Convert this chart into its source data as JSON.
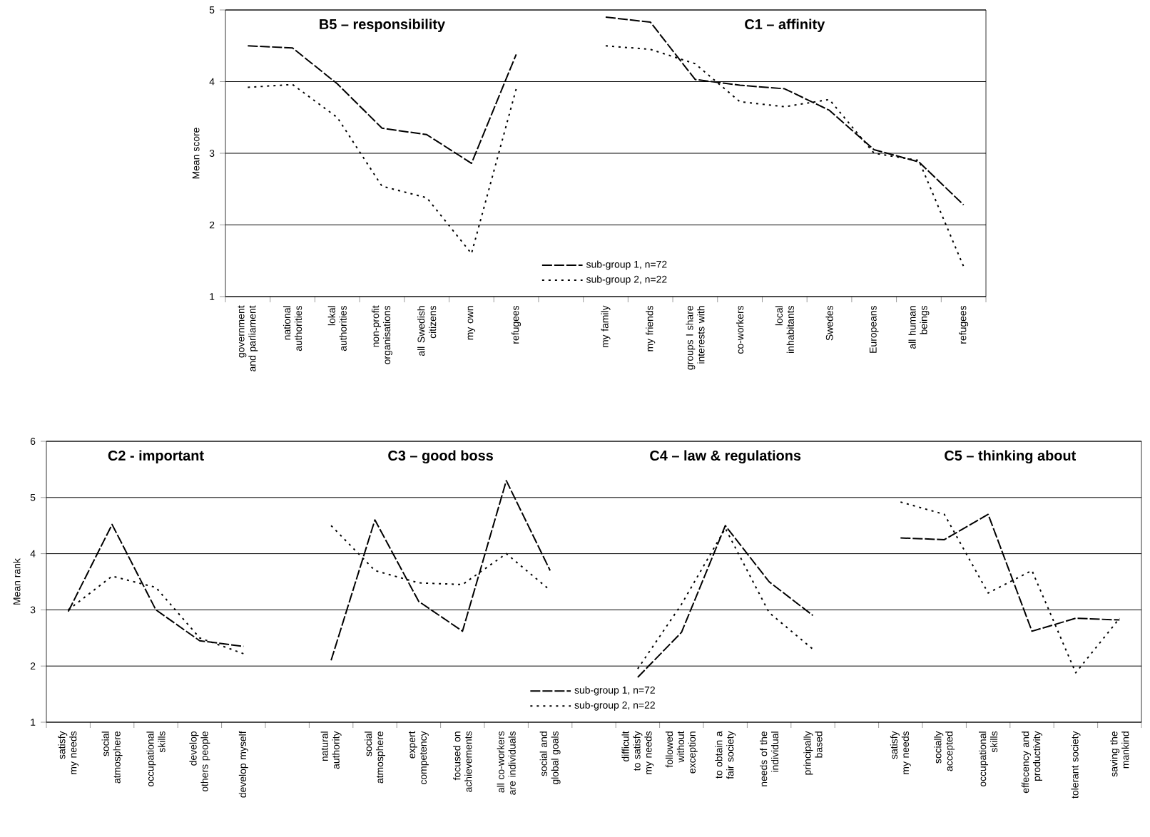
{
  "chart_data": [
    {
      "type": "line",
      "ylabel": "Mean score",
      "ylim": [
        1,
        5
      ],
      "yticks": [
        1,
        2,
        3,
        4,
        5
      ],
      "grid": "y",
      "legend": "bottom",
      "annotations": [
        "B5 – responsibility",
        "C1 – affinity"
      ],
      "categories": [
        "government and parliament",
        "national authorities",
        "lokal authorities",
        "non-profit organisations",
        "all Swedish citizens",
        "my own",
        "refugees",
        null,
        "my family",
        "my friends",
        "groups I share interests with",
        "co-workers",
        "local inhabitants",
        "Swedes",
        "Europeans",
        "all human beings",
        "refugees"
      ],
      "series": [
        {
          "name": "sub-group 1, n=72",
          "color": "#000000",
          "line_style": "dashed",
          "values": [
            4.5,
            4.47,
            3.97,
            3.35,
            3.26,
            2.86,
            4.38,
            null,
            4.9,
            4.83,
            4.03,
            3.95,
            3.9,
            3.6,
            3.05,
            2.88,
            2.28
          ]
        },
        {
          "name": "sub-group 2, n=22",
          "color": "#000000",
          "line_style": "dotted",
          "values": [
            3.92,
            3.96,
            3.5,
            2.54,
            2.38,
            1.6,
            3.9,
            null,
            4.5,
            4.45,
            4.25,
            3.72,
            3.65,
            3.75,
            3.0,
            2.9,
            1.42
          ]
        }
      ]
    },
    {
      "type": "line",
      "ylabel": "Mean rank",
      "ylim": [
        1,
        6
      ],
      "yticks": [
        1,
        2,
        3,
        4,
        5,
        6
      ],
      "grid": "y",
      "legend": "bottom",
      "annotations": [
        "C2 - important",
        "C3 – good boss",
        "C4 – law & regulations",
        "C5 – thinking about"
      ],
      "categories": [
        "satisfy my needs",
        "social atmosphere",
        "occupational skills",
        "develop others people",
        "develop myself",
        null,
        "natural authority",
        "social atmosphere",
        "expert competency",
        "focused on achievements",
        "all co-workers are individuals",
        "social and global goals",
        null,
        "difficult to satisfy my needs",
        "followed without exception",
        "to obtain a fair society",
        "needs of the individual",
        "principally based",
        null,
        "satisfy my needs",
        "socially accepted",
        "occupational skills",
        "effecency and productivity",
        "tolerant society",
        "saving the mankind"
      ],
      "series": [
        {
          "name": "sub-group 1, n=72",
          "color": "#000000",
          "line_style": "dashed",
          "values": [
            2.97,
            4.52,
            3.0,
            2.45,
            2.35,
            null,
            2.1,
            4.6,
            3.15,
            2.62,
            5.3,
            3.7,
            null,
            1.8,
            2.6,
            4.5,
            3.5,
            2.9,
            null,
            4.28,
            4.25,
            4.7,
            2.62,
            2.85,
            2.82
          ]
        },
        {
          "name": "sub-group 2, n=22",
          "color": "#000000",
          "line_style": "dotted",
          "values": [
            3.0,
            3.6,
            3.4,
            2.5,
            2.22,
            null,
            4.5,
            3.7,
            3.48,
            3.45,
            4.0,
            3.35,
            null,
            1.95,
            3.1,
            4.45,
            2.95,
            2.3,
            null,
            4.92,
            4.7,
            3.3,
            3.7,
            1.88,
            2.85
          ]
        }
      ]
    }
  ]
}
